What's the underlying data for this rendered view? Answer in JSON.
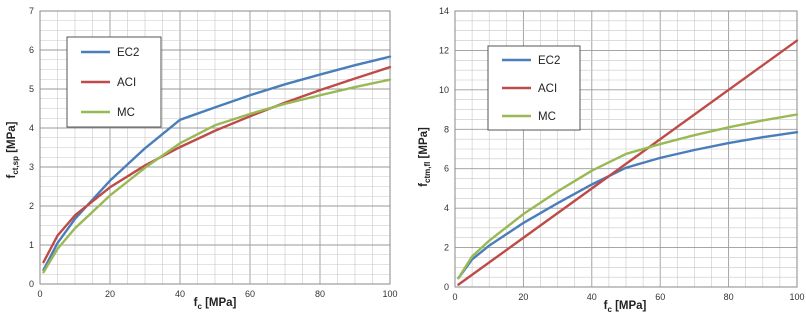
{
  "chart_data": [
    {
      "type": "line",
      "xlabel": {
        "main": "f",
        "sub": "c",
        "suffix": " [MPa]"
      },
      "ylabel": {
        "main": "f",
        "sub": "ct,sp",
        "suffix": " [MPa]"
      },
      "xlim": [
        0,
        100
      ],
      "ylim": [
        0,
        7
      ],
      "xticks": [
        "0",
        "20",
        "40",
        "60",
        "80",
        "100"
      ],
      "yticks": [
        "0",
        "1",
        "2",
        "3",
        "4",
        "5",
        "6",
        "7"
      ],
      "grid": true,
      "legend_position": "top-left",
      "series": [
        {
          "name": "EC2",
          "color": "#4a7ebb",
          "x": [
            1,
            5,
            10,
            20,
            30,
            40,
            50,
            60,
            70,
            80,
            90,
            100
          ],
          "y": [
            0.36,
            1.05,
            1.67,
            2.65,
            3.48,
            4.21,
            4.53,
            4.84,
            5.12,
            5.37,
            5.61,
            5.83
          ]
        },
        {
          "name": "ACI",
          "color": "#be4b48",
          "x": [
            1,
            5,
            10,
            20,
            30,
            40,
            50,
            60,
            70,
            80,
            90,
            100
          ],
          "y": [
            0.56,
            1.24,
            1.76,
            2.48,
            3.04,
            3.51,
            3.93,
            4.3,
            4.65,
            4.97,
            5.27,
            5.56
          ]
        },
        {
          "name": "MC",
          "color": "#98b954",
          "x": [
            1,
            5,
            10,
            20,
            30,
            40,
            50,
            60,
            70,
            80,
            90,
            100
          ],
          "y": [
            0.3,
            0.9,
            1.43,
            2.27,
            2.98,
            3.61,
            4.07,
            4.36,
            4.62,
            4.84,
            5.05,
            5.24
          ]
        }
      ]
    },
    {
      "type": "line",
      "xlabel": {
        "main": "f",
        "sub": "c",
        "suffix": " [MPa]"
      },
      "ylabel": {
        "main": "f",
        "sub": "ctm,fl",
        "suffix": " [MPa]"
      },
      "xlim": [
        0,
        100
      ],
      "ylim": [
        0,
        14
      ],
      "xticks": [
        "0",
        "20",
        "40",
        "60",
        "80",
        "100"
      ],
      "yticks": [
        "0",
        "2",
        "4",
        "6",
        "8",
        "10",
        "12",
        "14"
      ],
      "grid": true,
      "legend_position": "top-left",
      "series": [
        {
          "name": "EC2",
          "color": "#4a7ebb",
          "x": [
            1,
            5,
            10,
            20,
            30,
            40,
            50,
            60,
            70,
            80,
            90,
            100
          ],
          "y": [
            0.45,
            1.4,
            2.1,
            3.25,
            4.25,
            5.2,
            6.05,
            6.55,
            6.95,
            7.3,
            7.6,
            7.85
          ]
        },
        {
          "name": "ACI",
          "color": "#be4b48",
          "x": [
            1,
            100
          ],
          "y": [
            0.12,
            12.5
          ]
        },
        {
          "name": "MC",
          "color": "#98b954",
          "x": [
            1,
            5,
            10,
            20,
            30,
            40,
            50,
            60,
            70,
            80,
            90,
            100
          ],
          "y": [
            0.45,
            1.55,
            2.35,
            3.7,
            4.85,
            5.9,
            6.75,
            7.25,
            7.7,
            8.1,
            8.45,
            8.75
          ]
        }
      ]
    }
  ]
}
